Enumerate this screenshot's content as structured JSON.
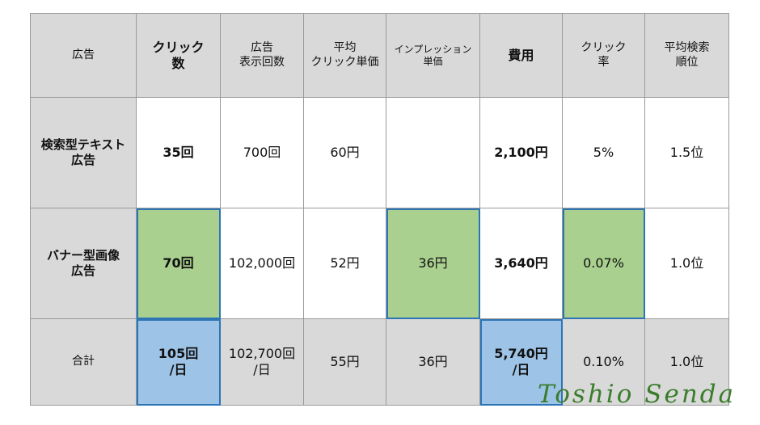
{
  "table": {
    "headers": [
      "広告",
      "クリック\n数",
      "広告\n表示回数",
      "平均\nクリック単価",
      "インプレッション\n単価",
      "費用",
      "クリック\n率",
      "平均検索\n順位"
    ],
    "rows": [
      {
        "label": "検索型テキスト\n広告",
        "cells": [
          "35回",
          "700回",
          "60円",
          "",
          "2,100円",
          "5%",
          "1.5位"
        ]
      },
      {
        "label": "バナー型画像\n広告",
        "cells": [
          "70回",
          "102,000回",
          "52円",
          "36円",
          "3,640円",
          "0.07%",
          "1.0位"
        ]
      },
      {
        "label": "合計",
        "cells": [
          "105回\n/日",
          "102,700回\n/日",
          "55円",
          "36円",
          "5,740円\n/日",
          "0.10%",
          "1.0位"
        ]
      }
    ]
  },
  "highlight_colors": {
    "green": "#a9d08e",
    "blue": "#9dc3e6",
    "border": "#2e75b6"
  },
  "signature": "Toshio Senda"
}
